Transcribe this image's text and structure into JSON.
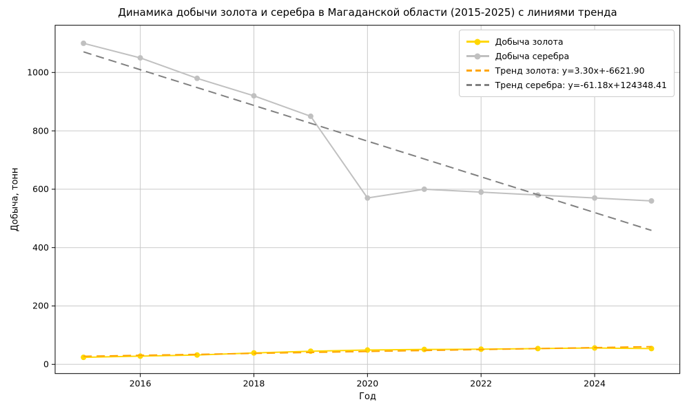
{
  "chart_data": {
    "type": "line",
    "title": "Динамика добычи золота и серебра в Магаданской области (2015-2025) с линиями тренда",
    "xlabel": "Год",
    "ylabel": "Добыча, тонн",
    "x": [
      2015,
      2016,
      2017,
      2018,
      2019,
      2020,
      2021,
      2022,
      2023,
      2024,
      2025
    ],
    "series": [
      {
        "name": "Добыча золота",
        "color": "#FFD700",
        "marker": "circle",
        "style": "solid",
        "values": [
          24,
          28,
          32,
          39,
          45,
          49,
          51,
          52,
          54,
          56,
          54
        ]
      },
      {
        "name": "Добыча серебра",
        "color": "#C0C0C0",
        "marker": "circle",
        "style": "solid",
        "values": [
          1100,
          1050,
          980,
          920,
          850,
          570,
          600,
          590,
          580,
          570,
          560
        ]
      }
    ],
    "trends": [
      {
        "name": "Тренд золота: y=3.30x+-6621.90",
        "color": "#FFA500",
        "style": "dashed",
        "slope": 3.3,
        "intercept": -6621.9
      },
      {
        "name": "Тренд серебра: y=-61.18x+124348.41",
        "color": "#808080",
        "style": "dashed",
        "slope": -61.18,
        "intercept": 124348.41
      }
    ],
    "xticks": [
      2016,
      2018,
      2020,
      2022,
      2024
    ],
    "yticks": [
      0,
      200,
      400,
      600,
      800,
      1000
    ],
    "xlim": [
      2014.5,
      2025.5
    ],
    "ylim": [
      -31.6,
      1161.8
    ],
    "grid": true,
    "grid_color": "#c9c9c9",
    "legend_position": "upper right"
  }
}
